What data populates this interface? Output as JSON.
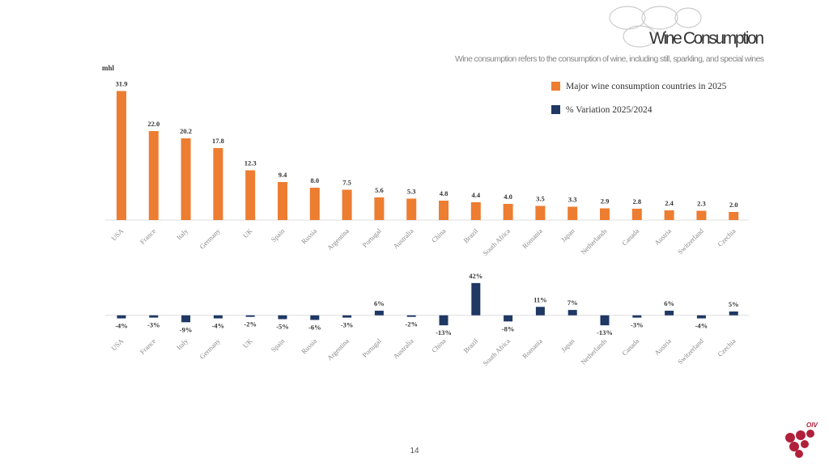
{
  "slide": {
    "title": "Wine Consumption",
    "subtitle": "Wine consumption refers to the consumption of wine, including still, sparkling, and special wines",
    "page_number": "14",
    "logo": "OIV"
  },
  "chart_data": [
    {
      "type": "bar",
      "unit": "mhl",
      "categories": [
        "USA",
        "France",
        "Italy",
        "Germany",
        "UK",
        "Spain",
        "Russia",
        "Argentina",
        "Portugal",
        "Australia",
        "China",
        "Brazil",
        "South Africa",
        "Romania",
        "Japan",
        "Netherlands",
        "Canada",
        "Austria",
        "Switzerland",
        "Czechia"
      ],
      "series": [
        {
          "name": "Major wine consumption countries in 2025",
          "color": "#ed7d31",
          "values": [
            31.9,
            22.0,
            20.2,
            17.8,
            12.3,
            9.4,
            8.0,
            7.5,
            5.6,
            5.3,
            4.8,
            4.4,
            4.0,
            3.5,
            3.3,
            2.9,
            2.8,
            2.4,
            2.3,
            2.0
          ],
          "value_labels": [
            "31.9",
            "22.0",
            "20.2",
            "17.8",
            "12.3",
            "9.4",
            "8.0",
            "7.5",
            "5.6",
            "5.3",
            "4.8",
            "4.4",
            "4.0",
            "3.5",
            "3.3",
            "2.9",
            "2.8",
            "2.4",
            "2.3",
            "2.0"
          ]
        }
      ],
      "ylim": [
        0,
        32
      ]
    },
    {
      "type": "bar",
      "categories": [
        "USA",
        "France",
        "Italy",
        "Germany",
        "UK",
        "Spain",
        "Russia",
        "Argentina",
        "Portugal",
        "Australia",
        "China",
        "Brazil",
        "South Africa",
        "Romania",
        "Japan",
        "Netherlands",
        "Canada",
        "Austria",
        "Switzerland",
        "Czechia"
      ],
      "series": [
        {
          "name": "% Variation 2025/2024",
          "color": "#1f3864",
          "values": [
            -4,
            -3,
            -9,
            -4,
            -2,
            -5,
            -6,
            -3,
            6,
            -2,
            -13,
            42,
            -8,
            11,
            7,
            -13,
            -3,
            6,
            -4,
            5
          ],
          "value_labels": [
            "-4%",
            "-3%",
            "-9%",
            "-4%",
            "-2%",
            "-5%",
            "-6%",
            "-3%",
            "6%",
            "-2%",
            "-13%",
            "42%",
            "-8%",
            "11%",
            "7%",
            "-13%",
            "-3%",
            "6%",
            "-4%",
            "5%"
          ]
        }
      ],
      "ylim": [
        -15,
        45
      ]
    }
  ]
}
